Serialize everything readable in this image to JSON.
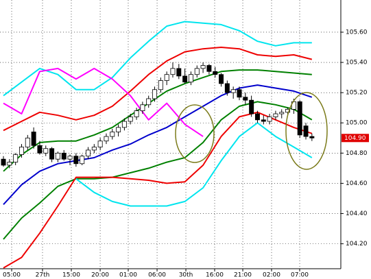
{
  "chart_data": {
    "type": "candlestick",
    "xlim": [
      -0.57,
      55.78
    ],
    "ylim": [
      104.035,
      105.813
    ],
    "xticks": [
      {
        "value": 1.36,
        "label": "05:00"
      },
      {
        "value": 6.46,
        "label": "27th"
      },
      {
        "value": 11.22,
        "label": "15:00"
      },
      {
        "value": 15.99,
        "label": "20:00"
      },
      {
        "value": 20.63,
        "label": "01:00"
      },
      {
        "value": 25.4,
        "label": "06:00"
      },
      {
        "value": 30.16,
        "label": "30th"
      },
      {
        "value": 34.92,
        "label": "16:00"
      },
      {
        "value": 39.57,
        "label": "21:00"
      },
      {
        "value": 44.33,
        "label": "02:00"
      },
      {
        "value": 48.98,
        "label": "07:00"
      }
    ],
    "yticks": [
      {
        "value": 104.2,
        "label": "104.20"
      },
      {
        "value": 104.4,
        "label": "104.40"
      },
      {
        "value": 104.6,
        "label": "104.60"
      },
      {
        "value": 104.8,
        "label": "104.80"
      },
      {
        "value": 105.0,
        "label": "105.00"
      },
      {
        "value": 105.2,
        "label": "105.20"
      },
      {
        "value": 105.4,
        "label": "105.40"
      },
      {
        "value": 105.6,
        "label": "105.60"
      }
    ],
    "grid": true,
    "open": [
      104.76,
      104.72,
      104.74,
      104.79,
      104.84,
      104.94,
      104.85,
      104.8,
      104.83,
      104.76,
      104.8,
      104.76,
      104.78,
      104.73,
      104.78,
      104.82,
      104.84,
      104.88,
      104.91,
      104.94,
      104.97,
      105.01,
      105.04,
      105.08,
      105.12,
      105.16,
      105.22,
      105.28,
      105.32,
      105.36,
      105.31,
      105.27,
      105.32,
      105.36,
      105.38,
      105.34,
      105.32,
      105.26,
      105.2,
      105.22,
      105.17,
      105.15,
      105.06,
      105.02,
      105.01,
      105.04,
      105.06,
      105.07,
      105.09,
      105.14,
      104.98,
      104.91
    ],
    "high": [
      104.78,
      104.76,
      104.8,
      104.86,
      104.92,
      104.97,
      104.88,
      104.85,
      104.84,
      104.81,
      104.82,
      104.79,
      104.8,
      104.79,
      104.84,
      104.86,
      104.9,
      104.93,
      104.96,
      104.99,
      105.03,
      105.06,
      105.1,
      105.14,
      105.18,
      105.24,
      105.3,
      105.34,
      105.4,
      105.39,
      105.36,
      105.34,
      105.38,
      105.4,
      105.39,
      105.37,
      105.33,
      105.28,
      105.24,
      105.24,
      105.2,
      105.18,
      105.08,
      105.05,
      105.06,
      105.08,
      105.09,
      105.1,
      105.16,
      105.15,
      105.0,
      104.93
    ],
    "low": [
      104.71,
      104.7,
      104.72,
      104.77,
      104.82,
      104.83,
      104.79,
      104.78,
      104.74,
      104.74,
      104.75,
      104.72,
      104.71,
      104.72,
      104.76,
      104.8,
      104.82,
      104.86,
      104.89,
      104.91,
      104.95,
      104.99,
      105.02,
      105.06,
      105.1,
      105.14,
      105.2,
      105.25,
      105.3,
      105.29,
      105.26,
      105.25,
      105.3,
      105.33,
      105.32,
      105.3,
      105.24,
      105.18,
      105.16,
      105.15,
      105.12,
      105.04,
      105.0,
      104.99,
      104.99,
      105.02,
      105.03,
      105.05,
      105.06,
      104.9,
      104.89,
      104.88
    ],
    "close": [
      104.72,
      104.74,
      104.79,
      104.84,
      104.9,
      104.85,
      104.8,
      104.83,
      104.76,
      104.8,
      104.76,
      104.78,
      104.73,
      104.78,
      104.82,
      104.84,
      104.88,
      104.91,
      104.94,
      104.97,
      105.01,
      105.04,
      105.08,
      105.12,
      105.16,
      105.22,
      105.28,
      105.32,
      105.36,
      105.31,
      105.27,
      105.32,
      105.36,
      105.38,
      105.34,
      105.32,
      105.26,
      105.2,
      105.22,
      105.17,
      105.15,
      105.06,
      105.02,
      105.01,
      105.04,
      105.06,
      105.07,
      105.09,
      105.14,
      104.92,
      104.91,
      104.9
    ],
    "line_x": [
      0,
      3,
      6,
      9,
      12,
      15,
      18,
      21,
      24,
      27,
      30,
      33,
      36,
      39,
      42,
      45,
      48,
      51
    ],
    "series": [
      {
        "color": "#00e5ee",
        "values": [
          105.18,
          105.27,
          105.36,
          105.32,
          105.22,
          105.22,
          105.3,
          105.43,
          105.54,
          105.64,
          105.67,
          105.66,
          105.65,
          105.61,
          105.54,
          105.51,
          105.53,
          105.53
        ]
      },
      {
        "color": "#ee0000",
        "values": [
          104.95,
          105.01,
          105.07,
          105.05,
          105.02,
          105.05,
          105.11,
          105.21,
          105.32,
          105.41,
          105.47,
          105.49,
          105.5,
          105.49,
          105.45,
          105.44,
          105.45,
          105.42
        ]
      },
      {
        "color": "#008000",
        "values": [
          104.68,
          104.79,
          104.87,
          104.88,
          104.88,
          104.92,
          104.97,
          105.05,
          105.13,
          105.21,
          105.26,
          105.3,
          105.34,
          105.35,
          105.35,
          105.34,
          105.33,
          105.32
        ]
      },
      {
        "color": "#0000cc",
        "values": [
          104.46,
          104.59,
          104.68,
          104.73,
          104.75,
          104.77,
          104.82,
          104.86,
          104.92,
          104.97,
          105.04,
          105.11,
          105.18,
          105.23,
          105.25,
          105.23,
          105.21,
          105.17
        ]
      },
      {
        "color": "#008000",
        "values": [
          104.23,
          104.37,
          104.47,
          104.58,
          104.63,
          104.63,
          104.64,
          104.67,
          104.7,
          104.74,
          104.77,
          104.87,
          105.02,
          105.11,
          105.14,
          105.12,
          105.09,
          105.02
        ]
      },
      {
        "color": "#ee0000",
        "values": [
          104.04,
          104.11,
          104.27,
          104.45,
          104.64,
          104.64,
          104.64,
          104.63,
          104.62,
          104.6,
          104.61,
          104.72,
          104.91,
          105.04,
          105.07,
          105.02,
          104.97,
          104.93
        ]
      },
      {
        "color": "#00e5ee",
        "values": [
          null,
          null,
          null,
          null,
          104.63,
          104.54,
          104.48,
          104.45,
          104.45,
          104.45,
          104.48,
          104.57,
          104.75,
          104.91,
          105.0,
          104.91,
          104.84,
          104.77
        ]
      },
      {
        "color": "#ff00ff",
        "values": [
          105.13,
          105.06,
          105.34,
          105.36,
          105.29,
          105.36,
          105.29,
          105.18,
          105.02,
          105.13,
          104.99,
          104.91,
          null,
          null,
          null,
          null,
          null,
          null
        ]
      }
    ],
    "last_price": 104.9,
    "last_price_label": "104.90",
    "last_price_color": "#e00000"
  }
}
